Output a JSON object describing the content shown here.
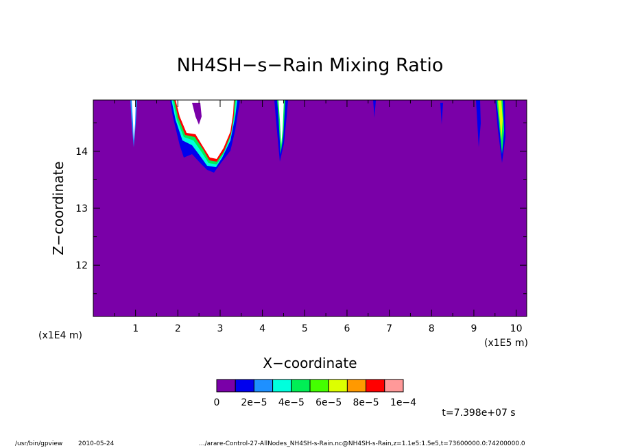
{
  "footer": {
    "program": "/usr/bin/gpview",
    "date": "2010-05-24",
    "source": ".../arare-Control-27-AllNodes_NH4SH-s-Rain.nc@NH4SH-s-Rain,z=1.1e5:1.5e5,t=73600000.0:74200000.0"
  },
  "chart_data": {
    "type": "heatmap",
    "title": "NH4SH−s−Rain Mixing Ratio",
    "xlabel": "X−coordinate",
    "ylabel": "Z−coordinate",
    "x_unit": "(x1E5 m)",
    "y_unit": "(x1E4 m)",
    "xlim": [
      0,
      10.25
    ],
    "ylim": [
      11.1,
      14.9
    ],
    "x_ticks": [
      1,
      2,
      3,
      4,
      5,
      6,
      7,
      8,
      9,
      10
    ],
    "y_ticks": [
      12,
      13,
      14
    ],
    "time_label": "t=7.398e+07 s",
    "background_color": "#7a00a8",
    "colorbar": {
      "colors": [
        "#7a00a8",
        "#0000ee",
        "#1e90ff",
        "#00ffdd",
        "#00ee55",
        "#44ff00",
        "#ddff00",
        "#ff9900",
        "#ff0000",
        "#ff9999"
      ],
      "tick_labels": [
        "0",
        "2e−5",
        "4e−5",
        "6e−5",
        "8e−5",
        "1e−4"
      ]
    },
    "features": [
      {
        "x_range": [
          0.92,
          1.0
        ],
        "z_bottom": 14.05,
        "level": "high"
      },
      {
        "x_range": [
          1.8,
          3.5
        ],
        "z_bottom": 13.7,
        "level": "high"
      },
      {
        "x_range": [
          4.3,
          4.6
        ],
        "z_bottom": 13.85,
        "level": "high"
      },
      {
        "x_range": [
          6.6,
          6.65
        ],
        "z_bottom": 14.6,
        "level": "low"
      },
      {
        "x_range": [
          8.22,
          8.25
        ],
        "z_bottom": 14.45,
        "level": "low"
      },
      {
        "x_range": [
          8.97,
          9.05
        ],
        "z_bottom": 14.15,
        "level": "mid"
      },
      {
        "x_range": [
          9.5,
          9.7
        ],
        "z_bottom": 13.85,
        "level": "high"
      }
    ]
  }
}
